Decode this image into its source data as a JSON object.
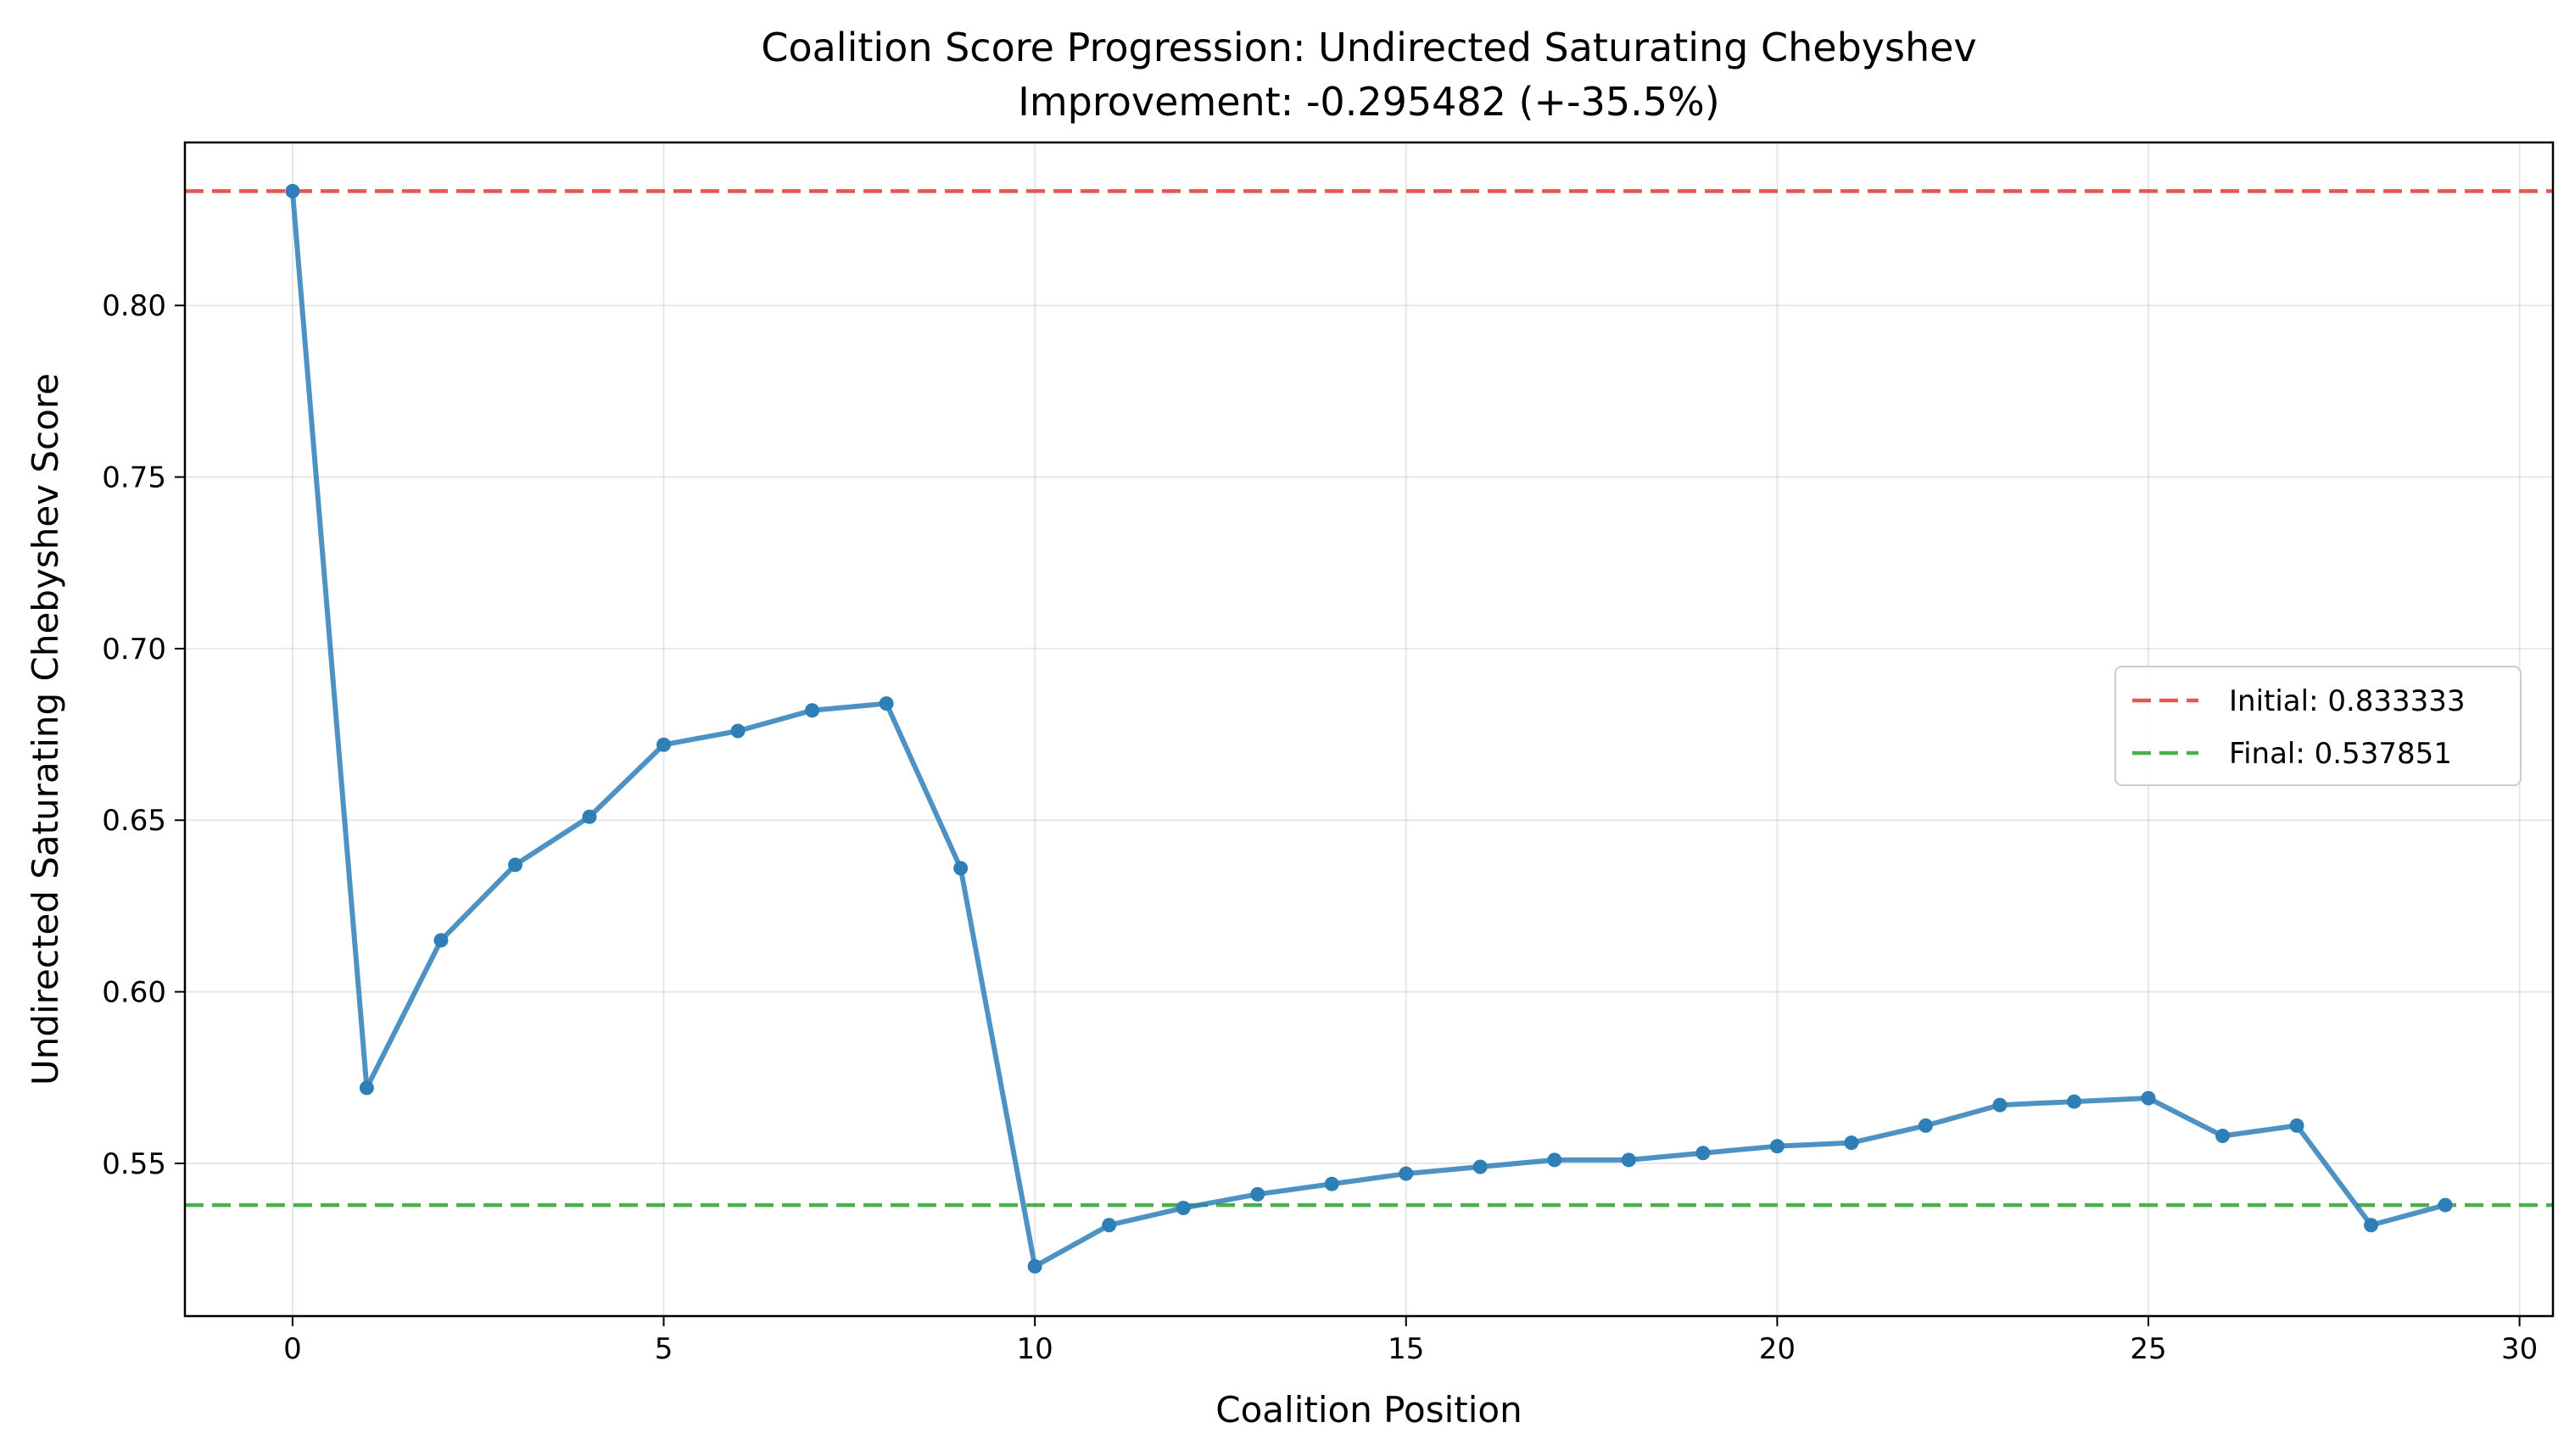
{
  "chart_data": {
    "type": "line",
    "title": "Coalition Score Progression: Undirected Saturating Chebyshev",
    "subtitle": "Improvement: -0.295482 (+-35.5%)",
    "xlabel": "Coalition Position",
    "ylabel": "Undirected Saturating Chebyshev Score",
    "xlim": [
      -1.45,
      30.45
    ],
    "ylim": [
      0.5055,
      0.8475
    ],
    "xticks": [
      0,
      5,
      10,
      15,
      20,
      25,
      30
    ],
    "xtick_labels": [
      "0",
      "5",
      "10",
      "15",
      "20",
      "25",
      "30"
    ],
    "yticks": [
      0.55,
      0.6,
      0.65,
      0.7,
      0.75,
      0.8
    ],
    "ytick_labels": [
      "0.55",
      "0.60",
      "0.65",
      "0.70",
      "0.75",
      "0.80"
    ],
    "grid": true,
    "legend_position": "center-right",
    "series": [
      {
        "color": "#2e7fb8",
        "x": [
          0,
          1,
          2,
          3,
          4,
          5,
          6,
          7,
          8,
          9,
          10,
          11,
          12,
          13,
          14,
          15,
          16,
          17,
          18,
          19,
          20,
          21,
          22,
          23,
          24,
          25,
          26,
          27,
          28,
          29
        ],
        "y": [
          0.833333,
          0.572,
          0.615,
          0.637,
          0.651,
          0.672,
          0.676,
          0.682,
          0.684,
          0.636,
          0.52,
          0.532,
          0.537,
          0.541,
          0.544,
          0.547,
          0.549,
          0.551,
          0.551,
          0.553,
          0.555,
          0.556,
          0.561,
          0.567,
          0.568,
          0.569,
          0.558,
          0.561,
          0.532,
          0.537851
        ]
      }
    ],
    "reference_lines": [
      {
        "label": "Initial: 0.833333",
        "value": 0.833333,
        "color": "#e8433e"
      },
      {
        "label": "Final: 0.537851",
        "value": 0.537851,
        "color": "#3aa53a"
      }
    ]
  }
}
